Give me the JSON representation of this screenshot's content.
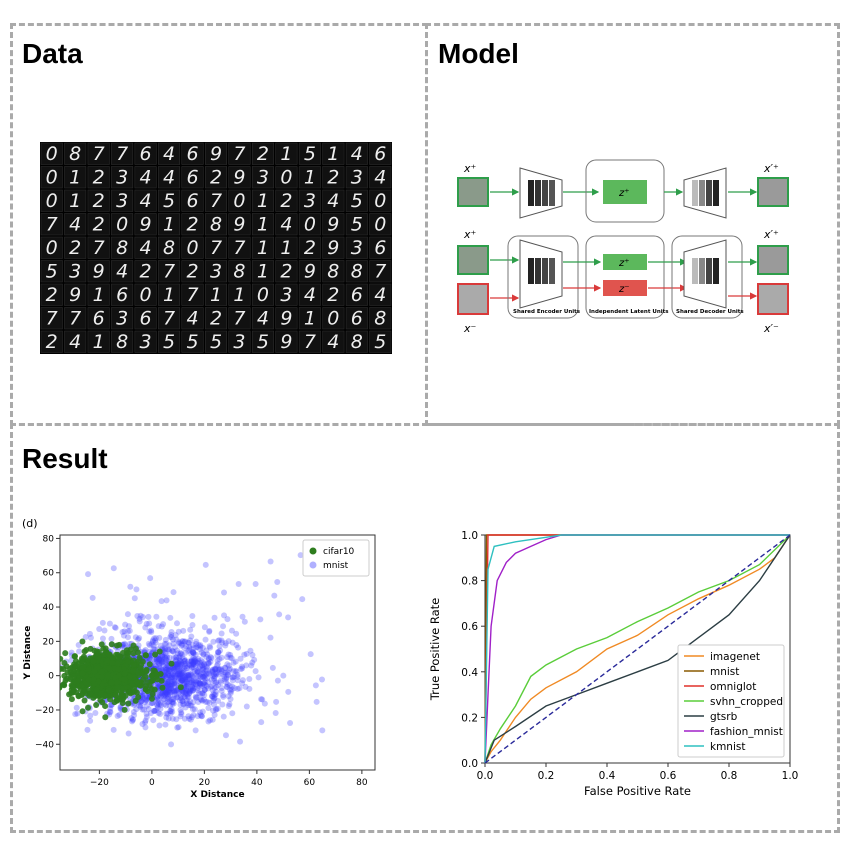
{
  "panels": {
    "data": {
      "title": "Data"
    },
    "model": {
      "title": "Model"
    },
    "result": {
      "title": "Result"
    }
  },
  "mnist_grid": {
    "rows": [
      "0877646972151 46",
      "0123446293012 34",
      "0123456701234 50",
      "7420912891409 50",
      "0278480771129 36",
      "5394272381298 87",
      "2916017110342 64",
      "7763674274910 68",
      "2418355535974 85"
    ]
  },
  "model": {
    "x_plus": "x⁺",
    "x_minus": "x⁻",
    "x_prime_plus": "x′⁺",
    "x_prime_minus": "x′⁻",
    "z_plus": "z⁺",
    "z_minus": "z⁻",
    "shared_encoder": "Shared Encoder Units",
    "independent_latent": "Independent Latent Units",
    "shared_decoder": "Shared Decoder Units",
    "colors": {
      "positive": "#2e9e4a",
      "negative": "#d93a3a",
      "latent_pos": "#5cb85c",
      "latent_neg": "#e0544e"
    }
  },
  "chart_data": [
    {
      "type": "scatter",
      "panel_label": "(d)",
      "xlabel": "X Distance",
      "ylabel": "Y Distance",
      "xlim": [
        -35,
        85
      ],
      "ylim": [
        -55,
        82
      ],
      "xticks": [
        -20,
        0,
        20,
        40,
        60,
        80
      ],
      "yticks": [
        -40,
        -20,
        0,
        20,
        40,
        60,
        80
      ],
      "legend_position": "top-right",
      "series": [
        {
          "name": "cifar10",
          "color": "#2e7d1e",
          "center": [
            -18,
            0
          ],
          "spread": [
            8,
            7
          ],
          "count": 900
        },
        {
          "name": "mnist",
          "color": "#3a3aff",
          "center": [
            5,
            0
          ],
          "spread": [
            14,
            12
          ],
          "count": 1400
        }
      ]
    },
    {
      "type": "line",
      "xlabel": "False Positive Rate",
      "ylabel": "True Positive Rate",
      "xlim": [
        0,
        1
      ],
      "ylim": [
        0,
        1
      ],
      "xticks": [
        "0.0",
        "0.2",
        "0.4",
        "0.6",
        "0.8",
        "1.0"
      ],
      "yticks": [
        "0.0",
        "0.2",
        "0.4",
        "0.6",
        "0.8",
        "1.0"
      ],
      "legend_position": "bottom-right",
      "series": [
        {
          "name": "imagenet",
          "color": "#f08a24",
          "points": [
            [
              0,
              0
            ],
            [
              0.02,
              0.05
            ],
            [
              0.05,
              0.1
            ],
            [
              0.1,
              0.2
            ],
            [
              0.15,
              0.28
            ],
            [
              0.2,
              0.33
            ],
            [
              0.3,
              0.4
            ],
            [
              0.4,
              0.5
            ],
            [
              0.5,
              0.56
            ],
            [
              0.6,
              0.65
            ],
            [
              0.7,
              0.72
            ],
            [
              0.8,
              0.78
            ],
            [
              0.9,
              0.85
            ],
            [
              0.95,
              0.9
            ],
            [
              1,
              1
            ]
          ]
        },
        {
          "name": "mnist",
          "color": "#8a5a00",
          "points": [
            [
              0,
              0
            ],
            [
              0.005,
              1
            ],
            [
              1,
              1
            ]
          ]
        },
        {
          "name": "omniglot",
          "color": "#e0302a",
          "points": [
            [
              0,
              0
            ],
            [
              0.01,
              1
            ],
            [
              1,
              1
            ]
          ]
        },
        {
          "name": "svhn_cropped",
          "color": "#5acd3a",
          "points": [
            [
              0,
              0
            ],
            [
              0.02,
              0.08
            ],
            [
              0.05,
              0.15
            ],
            [
              0.1,
              0.25
            ],
            [
              0.15,
              0.38
            ],
            [
              0.2,
              0.43
            ],
            [
              0.3,
              0.5
            ],
            [
              0.4,
              0.55
            ],
            [
              0.5,
              0.62
            ],
            [
              0.6,
              0.68
            ],
            [
              0.7,
              0.75
            ],
            [
              0.8,
              0.8
            ],
            [
              0.9,
              0.87
            ],
            [
              1,
              1
            ]
          ]
        },
        {
          "name": "gtsrb",
          "color": "#2c3e44",
          "points": [
            [
              0,
              0
            ],
            [
              0.03,
              0.1
            ],
            [
              0.1,
              0.16
            ],
            [
              0.2,
              0.25
            ],
            [
              0.3,
              0.3
            ],
            [
              0.4,
              0.35
            ],
            [
              0.5,
              0.4
            ],
            [
              0.6,
              0.45
            ],
            [
              0.7,
              0.55
            ],
            [
              0.8,
              0.65
            ],
            [
              0.9,
              0.8
            ],
            [
              0.95,
              0.9
            ],
            [
              1,
              1
            ]
          ]
        },
        {
          "name": "fashion_mnist",
          "color": "#a020c8",
          "points": [
            [
              0,
              0
            ],
            [
              0.01,
              0.3
            ],
            [
              0.02,
              0.6
            ],
            [
              0.04,
              0.8
            ],
            [
              0.07,
              0.88
            ],
            [
              0.1,
              0.92
            ],
            [
              0.15,
              0.95
            ],
            [
              0.2,
              0.98
            ],
            [
              0.25,
              1
            ],
            [
              1,
              1
            ]
          ]
        },
        {
          "name": "kmnist",
          "color": "#2ec0c0",
          "points": [
            [
              0,
              0
            ],
            [
              0.01,
              0.85
            ],
            [
              0.03,
              0.95
            ],
            [
              0.1,
              0.97
            ],
            [
              0.2,
              0.99
            ],
            [
              0.25,
              1
            ],
            [
              1,
              1
            ]
          ]
        },
        {
          "name": "",
          "color": "#2a2a9a",
          "dashed": true,
          "points": [
            [
              0,
              0
            ],
            [
              1,
              1
            ]
          ]
        }
      ]
    }
  ]
}
